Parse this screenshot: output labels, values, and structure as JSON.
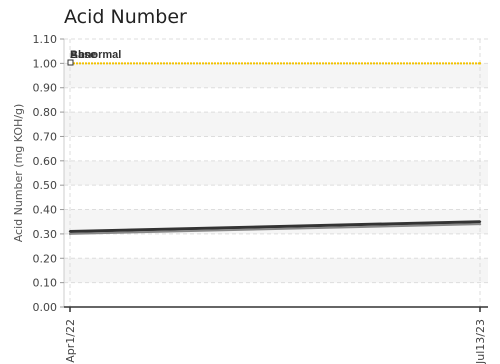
{
  "chart_data": {
    "type": "line",
    "title": "Acid Number",
    "ylabel": "Acid Number (mg KOH/g)",
    "xlabel": "",
    "ylim": [
      0,
      1.1
    ],
    "y_ticks": [
      "0.00",
      "0.10",
      "0.20",
      "0.30",
      "0.40",
      "0.50",
      "0.60",
      "0.70",
      "0.80",
      "0.90",
      "1.00",
      "1.10"
    ],
    "x_ticks": [
      "Apr1/22",
      "Jul13/23"
    ],
    "grid": true,
    "series": [
      {
        "name": "Abnormal",
        "color": "#f2c200",
        "style": "dotted",
        "x": [
          "Apr1/22",
          "Jul13/23"
        ],
        "values": [
          1.0,
          1.0
        ]
      },
      {
        "name": "Base",
        "color": "#333333",
        "style": "solid",
        "x": [
          "Apr1/22",
          "Jul13/23"
        ],
        "values": [
          0.31,
          0.35
        ]
      },
      {
        "color": "#888888",
        "style": "solid",
        "x": [
          "Apr1/22",
          "Jul13/23"
        ],
        "values": [
          0.3,
          0.34
        ]
      }
    ]
  }
}
